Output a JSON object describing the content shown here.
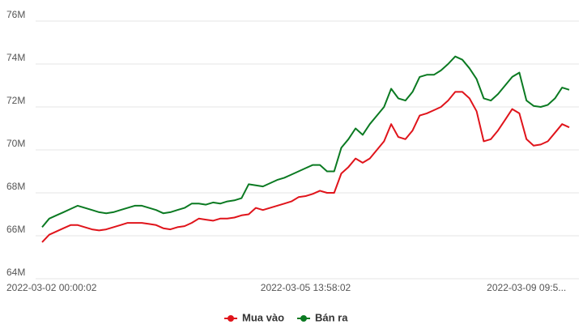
{
  "chart_data": {
    "type": "line",
    "categories": [
      "2022-03-02 00:00:02",
      null,
      null,
      null,
      null,
      null,
      null,
      null,
      null,
      null,
      null,
      null,
      null,
      null,
      null,
      null,
      null,
      null,
      null,
      null,
      null,
      null,
      null,
      null,
      null,
      null,
      null,
      null,
      null,
      null,
      null,
      null,
      null,
      null,
      null,
      null,
      null,
      "2022-03-05 13:58:02",
      null,
      null,
      null,
      null,
      null,
      null,
      null,
      null,
      null,
      null,
      null,
      null,
      null,
      null,
      null,
      null,
      null,
      null,
      null,
      null,
      null,
      null,
      null,
      null,
      null,
      null,
      null,
      null,
      null,
      null,
      "2022-03-09 09:5...",
      null,
      null,
      null,
      null,
      null,
      null
    ],
    "series": [
      {
        "name": "Mua vào",
        "color": "#e0141b",
        "values": [
          65.7,
          66.05,
          66.2,
          66.35,
          66.5,
          66.5,
          66.4,
          66.3,
          66.25,
          66.3,
          66.4,
          66.5,
          66.6,
          66.6,
          66.6,
          66.55,
          66.5,
          66.35,
          66.3,
          66.4,
          66.45,
          66.6,
          66.8,
          66.75,
          66.7,
          66.8,
          66.8,
          66.85,
          66.95,
          67.0,
          67.3,
          67.2,
          67.3,
          67.4,
          67.5,
          67.6,
          67.8,
          67.85,
          67.95,
          68.1,
          68.0,
          68.0,
          68.9,
          69.2,
          69.6,
          69.4,
          69.6,
          70.0,
          70.4,
          71.2,
          70.6,
          70.5,
          70.9,
          71.6,
          71.7,
          71.85,
          72.0,
          72.3,
          72.7,
          72.7,
          72.4,
          71.8,
          70.4,
          70.5,
          70.9,
          71.4,
          71.9,
          71.7,
          70.5,
          70.2,
          70.25,
          70.4,
          70.8,
          71.2,
          71.05
        ]
      },
      {
        "name": "Bán ra",
        "color": "#0b7a22",
        "values": [
          66.4,
          66.8,
          66.95,
          67.1,
          67.25,
          67.4,
          67.3,
          67.2,
          67.1,
          67.05,
          67.1,
          67.2,
          67.3,
          67.4,
          67.4,
          67.3,
          67.2,
          67.05,
          67.1,
          67.2,
          67.3,
          67.5,
          67.5,
          67.45,
          67.55,
          67.5,
          67.6,
          67.65,
          67.75,
          68.4,
          68.35,
          68.3,
          68.45,
          68.6,
          68.7,
          68.85,
          69.0,
          69.15,
          69.3,
          69.3,
          69.0,
          69.0,
          70.1,
          70.5,
          71.0,
          70.7,
          71.2,
          71.6,
          72.0,
          72.85,
          72.4,
          72.3,
          72.7,
          73.4,
          73.5,
          73.5,
          73.7,
          74.0,
          74.35,
          74.2,
          73.8,
          73.3,
          72.4,
          72.3,
          72.6,
          73.0,
          73.4,
          73.6,
          72.3,
          72.05,
          72.0,
          72.1,
          72.4,
          72.9,
          72.8
        ]
      }
    ],
    "ylim": [
      64,
      76
    ],
    "yticks": [
      {
        "value": 64,
        "label": "64M"
      },
      {
        "value": 66,
        "label": "66M"
      },
      {
        "value": 68,
        "label": "68M"
      },
      {
        "value": 70,
        "label": "70M"
      },
      {
        "value": 72,
        "label": "72M"
      },
      {
        "value": 74,
        "label": "74M"
      },
      {
        "value": 76,
        "label": "76M"
      }
    ],
    "grid": true,
    "legend": "bottom"
  }
}
